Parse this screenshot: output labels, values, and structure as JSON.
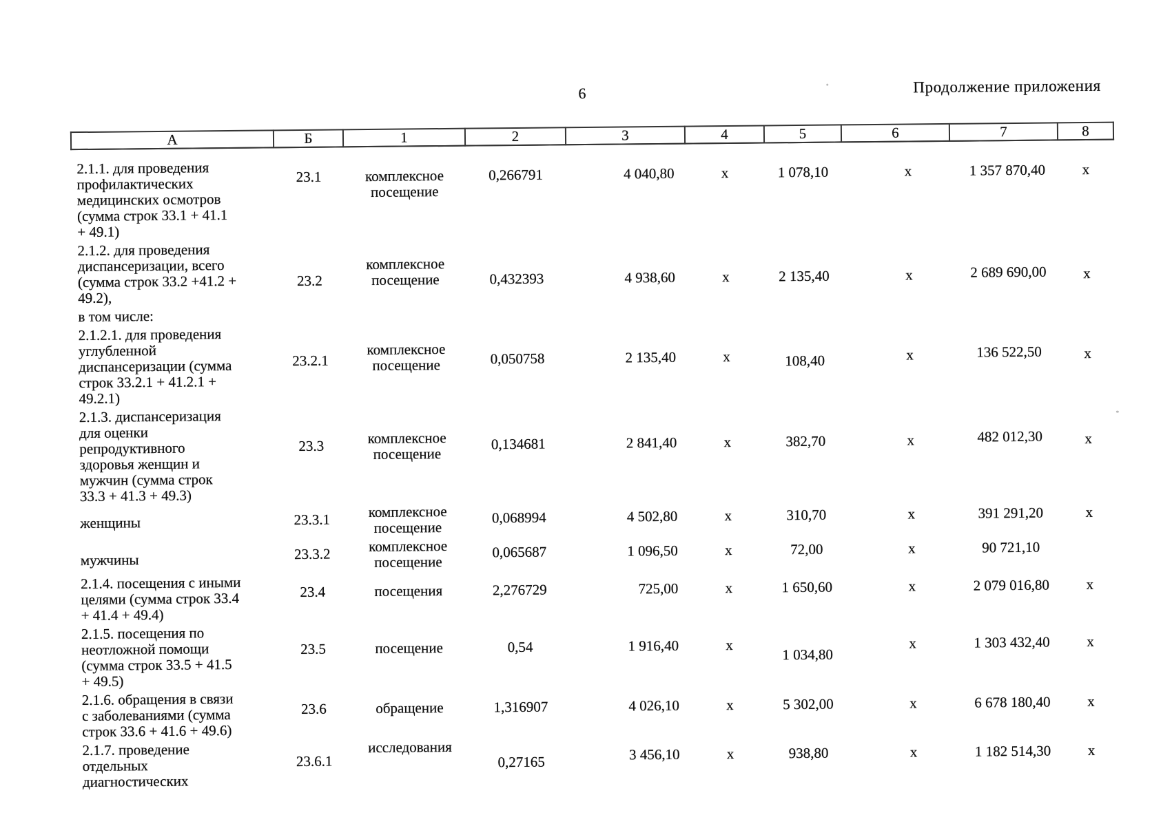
{
  "page": {
    "number": "6",
    "continuation": "Продолжение приложения",
    "paper_color": "#ffffff",
    "ink_color": "#101010"
  },
  "table": {
    "columns": [
      "А",
      "Б",
      "1",
      "2",
      "3",
      "4",
      "5",
      "6",
      "7",
      "8"
    ],
    "rows": [
      {
        "a": "2.1.1. для проведения\nпрофилактических\nмедицинских осмотров\n(сумма строк 33.1 + 41.1\n+ 49.1)",
        "b": "23.1",
        "c1": "комплексное посещение",
        "c2": "0,266791",
        "c3": "4 040,80",
        "c4": "х",
        "c5": "1 078,10",
        "c6": "х",
        "c7": "1 357 870,40",
        "c8": "х"
      },
      {
        "a": "2.1.2. для проведения\nдиспансеризации, всего\n(сумма строк 33.2 +41.2 +\n49.2),",
        "b": "23.2",
        "c1": "комплексное посещение",
        "c2": "0,432393",
        "c3": "4 938,60",
        "c4": "х",
        "c5": "2 135,40",
        "c6": "х",
        "c7": "2 689 690,00",
        "c8": "х"
      },
      {
        "kind": "subheading",
        "a": "в том числе:",
        "b": "",
        "c1": "",
        "c2": "",
        "c3": "",
        "c4": "",
        "c5": "",
        "c6": "",
        "c7": "",
        "c8": ""
      },
      {
        "a": "2.1.2.1. для проведения\nуглубленной\nдиспансеризации (сумма\nстрок 33.2.1 + 41.2.1 +\n49.2.1)",
        "b": "23.2.1",
        "c1": "комплексное посещение",
        "c2": "0,050758",
        "c3": "2 135,40",
        "c4": "х",
        "c5": "108,40",
        "c6": "х",
        "c7": "136 522,50",
        "c8": "х"
      },
      {
        "a": "2.1.3. диспансеризация\nдля оценки\nрепродуктивного\nздоровья женщин и\nмужчин (сумма строк\n33.3 + 41.3 + 49.3)",
        "b": "23.3",
        "c1": "комплексное посещение",
        "c2": "0,134681",
        "c3": "2 841,40",
        "c4": "х",
        "c5": "382,70",
        "c6": "х",
        "c7": "482 012,30",
        "c8": "х"
      },
      {
        "a": "женщины",
        "b": "23.3.1",
        "c1": "комплексное посещение",
        "c2": "0,068994",
        "c3": "4 502,80",
        "c4": "х",
        "c5": "310,70",
        "c6": "х",
        "c7": "391 291,20",
        "c8": "х"
      },
      {
        "a": "мужчины",
        "b": "23.3.2",
        "c1": "комплексное посещение",
        "c2": "0,065687",
        "c3": "1 096,50",
        "c4": "х",
        "c5": "72,00",
        "c6": "х",
        "c7": "90 721,10",
        "c8": ""
      },
      {
        "a": "2.1.4. посещения с иными\nцелями (сумма строк 33.4\n+ 41.4 + 49.4)",
        "b": "23.4",
        "c1": "посещения",
        "c2": "2,276729",
        "c3": "725,00",
        "c4": "х",
        "c5": "1 650,60",
        "c6": "х",
        "c7": "2 079 016,80",
        "c8": "х"
      },
      {
        "a": "2.1.5. посещения по\nнеотложной помощи\n(сумма строк 33.5 + 41.5\n+ 49.5)",
        "b": "23.5",
        "c1": "посещение",
        "c2": "0,54",
        "c3": "1 916,40",
        "c4": "х",
        "c5": "1 034,80",
        "c6": "х",
        "c7": "1 303 432,40",
        "c8": "х"
      },
      {
        "a": "2.1.6. обращения в связи\nс заболеваниями (сумма\nстрок 33.6 + 41.6 + 49.6)",
        "b": "23.6",
        "c1": "обращение",
        "c2": "1,316907",
        "c3": "4 026,10",
        "c4": "х",
        "c5": "5 302,00",
        "c6": "х",
        "c7": "6 678 180,40",
        "c8": "х"
      },
      {
        "a": "2.1.7. проведение\nотдельных\nдиагностических",
        "b": "23.6.1",
        "c1": "исследования",
        "c2": "0,27165",
        "c3": "3 456,10",
        "c4": "х",
        "c5": "938,80",
        "c6": "х",
        "c7": "1 182 514,30",
        "c8": "х"
      }
    ]
  }
}
